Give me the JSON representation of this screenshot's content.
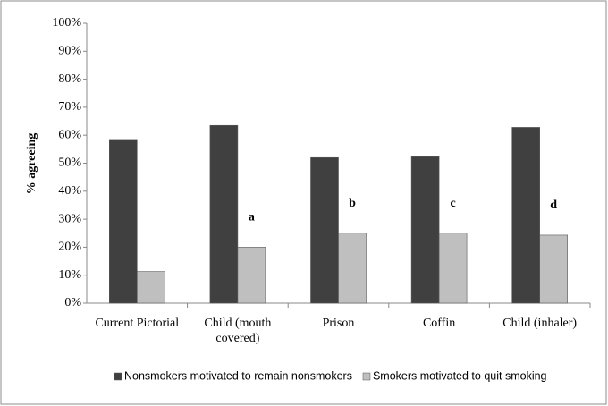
{
  "chart_data": {
    "type": "bar",
    "ylabel": "% agreeing",
    "categories": [
      "Current Pictorial",
      "Child (mouth covered)",
      "Prison",
      "Coffin",
      "Child (inhaler)"
    ],
    "series": [
      {
        "name": "Nonsmokers motivated to remain nonsmokers",
        "color": "#404040",
        "values": [
          58.5,
          63.5,
          52,
          52.3,
          62.8
        ]
      },
      {
        "name": "Smokers motivated to quit smoking",
        "color": "#bfbfbf",
        "values": [
          11.3,
          20,
          25,
          25,
          24.3
        ]
      }
    ],
    "value_annotations": [
      null,
      "a",
      "b",
      "c",
      "d"
    ],
    "ylim": [
      0,
      100
    ],
    "yticks": [
      {
        "value": 0,
        "label": "0%"
      },
      {
        "value": 10,
        "label": "10%"
      },
      {
        "value": 20,
        "label": "20%"
      },
      {
        "value": 30,
        "label": "30%"
      },
      {
        "value": 40,
        "label": "40%"
      },
      {
        "value": 50,
        "label": "50%"
      },
      {
        "value": 60,
        "label": "60%"
      },
      {
        "value": 70,
        "label": "70%"
      },
      {
        "value": 80,
        "label": "80%"
      },
      {
        "value": 90,
        "label": "90%"
      },
      {
        "value": 100,
        "label": "100%"
      }
    ],
    "legend": "bottom"
  }
}
